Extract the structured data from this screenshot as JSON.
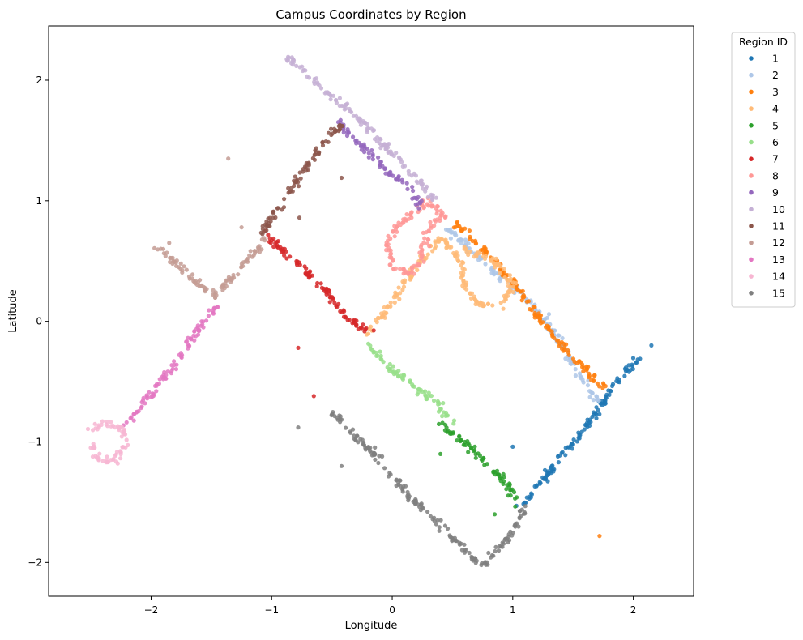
{
  "chart_data": {
    "type": "scatter",
    "title": "Campus Coordinates by Region",
    "xlabel": "Longitude",
    "ylabel": "Latitude",
    "xlim": [
      -2.85,
      2.5
    ],
    "ylim": [
      -2.28,
      2.45
    ],
    "xticks": [
      -2,
      -1,
      0,
      1,
      2
    ],
    "yticks": [
      -2,
      -1,
      0,
      1,
      2
    ],
    "grid": false,
    "legend": {
      "title": "Region ID",
      "placement": "outside-top-right"
    },
    "series": [
      {
        "name": "1",
        "color": "#1f77b4",
        "path": [
          [
            1.05,
            -1.55
          ],
          [
            1.3,
            -1.25
          ],
          [
            1.55,
            -0.95
          ],
          [
            1.75,
            -0.68
          ],
          [
            1.9,
            -0.45
          ],
          [
            2.05,
            -0.3
          ]
        ],
        "outliers": [
          [
            2.15,
            -0.2
          ],
          [
            1.0,
            -1.04
          ]
        ]
      },
      {
        "name": "2",
        "color": "#aec7e8",
        "path": [
          [
            0.45,
            0.78
          ],
          [
            0.8,
            0.45
          ],
          [
            1.1,
            0.2
          ],
          [
            1.35,
            -0.1
          ],
          [
            1.55,
            -0.45
          ],
          [
            1.7,
            -0.65
          ]
        ],
        "outliers": [
          [
            1.3,
            0.06
          ]
        ]
      },
      {
        "name": "3",
        "color": "#ff7f0e",
        "path": [
          [
            0.5,
            0.82
          ],
          [
            0.8,
            0.55
          ],
          [
            1.1,
            0.2
          ],
          [
            1.3,
            -0.08
          ],
          [
            1.5,
            -0.3
          ],
          [
            1.75,
            -0.55
          ]
        ],
        "outliers": [
          [
            1.72,
            -1.78
          ]
        ]
      },
      {
        "name": "4",
        "color": "#ffbb78",
        "path": [
          [
            -0.2,
            -0.1
          ],
          [
            0.0,
            0.15
          ],
          [
            0.2,
            0.45
          ],
          [
            0.4,
            0.7
          ],
          [
            0.55,
            0.55
          ],
          [
            0.6,
            0.3
          ],
          [
            0.7,
            0.15
          ],
          [
            0.9,
            0.1
          ],
          [
            1.0,
            0.3
          ],
          [
            0.85,
            0.5
          ],
          [
            0.6,
            0.6
          ]
        ],
        "outliers": []
      },
      {
        "name": "5",
        "color": "#2ca02c",
        "path": [
          [
            0.4,
            -0.85
          ],
          [
            0.6,
            -1.0
          ],
          [
            0.8,
            -1.2
          ],
          [
            0.95,
            -1.35
          ],
          [
            1.05,
            -1.5
          ]
        ],
        "outliers": [
          [
            0.4,
            -1.1
          ],
          [
            0.85,
            -1.6
          ]
        ]
      },
      {
        "name": "6",
        "color": "#98df8a",
        "path": [
          [
            -0.2,
            -0.2
          ],
          [
            0.0,
            -0.4
          ],
          [
            0.2,
            -0.55
          ],
          [
            0.4,
            -0.7
          ],
          [
            0.5,
            -0.82
          ]
        ],
        "outliers": []
      },
      {
        "name": "7",
        "color": "#d62728",
        "path": [
          [
            -1.05,
            0.72
          ],
          [
            -0.8,
            0.5
          ],
          [
            -0.55,
            0.25
          ],
          [
            -0.35,
            0.0
          ],
          [
            -0.15,
            -0.12
          ]
        ],
        "outliers": [
          [
            -0.78,
            -0.22
          ],
          [
            -0.65,
            -0.62
          ]
        ]
      },
      {
        "name": "8",
        "color": "#ff9896",
        "path": [
          [
            0.45,
            0.85
          ],
          [
            0.3,
            1.0
          ],
          [
            0.1,
            0.85
          ],
          [
            -0.05,
            0.65
          ],
          [
            0.0,
            0.45
          ],
          [
            0.15,
            0.4
          ],
          [
            0.25,
            0.55
          ],
          [
            0.3,
            0.75
          ],
          [
            0.4,
            0.9
          ]
        ],
        "outliers": []
      },
      {
        "name": "9",
        "color": "#9467bd",
        "path": [
          [
            -0.45,
            1.65
          ],
          [
            -0.25,
            1.45
          ],
          [
            -0.05,
            1.25
          ],
          [
            0.15,
            1.1
          ],
          [
            0.25,
            0.95
          ]
        ],
        "outliers": []
      },
      {
        "name": "10",
        "color": "#c5b0d5",
        "path": [
          [
            -0.88,
            2.2
          ],
          [
            -0.6,
            1.95
          ],
          [
            -0.35,
            1.75
          ],
          [
            -0.1,
            1.5
          ],
          [
            0.15,
            1.25
          ],
          [
            0.35,
            1.0
          ]
        ],
        "outliers": []
      },
      {
        "name": "11",
        "color": "#8c564b",
        "path": [
          [
            -1.1,
            0.72
          ],
          [
            -0.9,
            1.0
          ],
          [
            -0.7,
            1.3
          ],
          [
            -0.55,
            1.5
          ],
          [
            -0.4,
            1.65
          ]
        ],
        "outliers": [
          [
            -0.42,
            1.19
          ],
          [
            -0.77,
            0.86
          ]
        ]
      },
      {
        "name": "12",
        "color": "#c49c94",
        "path": [
          [
            -1.95,
            0.62
          ],
          [
            -1.75,
            0.45
          ],
          [
            -1.6,
            0.3
          ],
          [
            -1.45,
            0.2
          ],
          [
            -1.35,
            0.35
          ],
          [
            -1.2,
            0.5
          ],
          [
            -1.05,
            0.7
          ]
        ],
        "outliers": [
          [
            -1.36,
            1.35
          ],
          [
            -1.25,
            0.78
          ],
          [
            -1.85,
            0.65
          ]
        ]
      },
      {
        "name": "13",
        "color": "#e377c2",
        "path": [
          [
            -2.2,
            -0.85
          ],
          [
            -2.0,
            -0.6
          ],
          [
            -1.8,
            -0.35
          ],
          [
            -1.6,
            -0.05
          ],
          [
            -1.45,
            0.15
          ]
        ],
        "outliers": []
      },
      {
        "name": "14",
        "color": "#f7b6d2",
        "path": [
          [
            -2.5,
            -0.9
          ],
          [
            -2.4,
            -0.85
          ],
          [
            -2.25,
            -0.88
          ],
          [
            -2.2,
            -1.0
          ],
          [
            -2.3,
            -1.15
          ],
          [
            -2.45,
            -1.15
          ],
          [
            -2.5,
            -1.0
          ]
        ],
        "outliers": []
      },
      {
        "name": "15",
        "color": "#7f7f7f",
        "path": [
          [
            -0.5,
            -0.75
          ],
          [
            -0.2,
            -1.05
          ],
          [
            0.1,
            -1.4
          ],
          [
            0.4,
            -1.7
          ],
          [
            0.75,
            -2.03
          ],
          [
            0.95,
            -1.8
          ],
          [
            1.1,
            -1.55
          ]
        ],
        "outliers": [
          [
            -0.78,
            -0.88
          ],
          [
            -0.42,
            -1.2
          ]
        ]
      }
    ]
  }
}
